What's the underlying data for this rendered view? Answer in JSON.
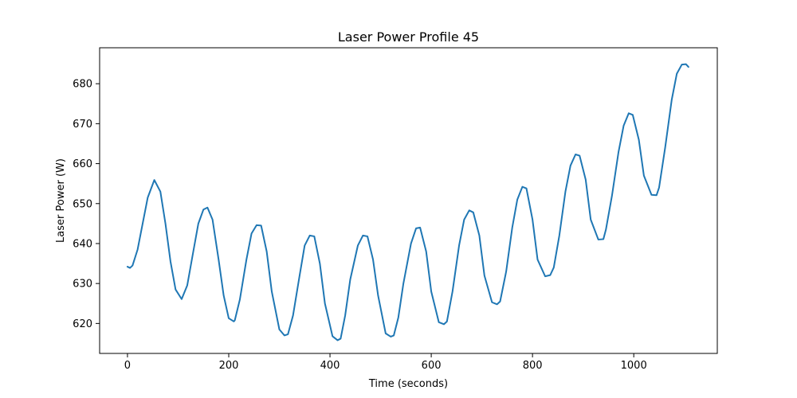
{
  "chart_data": {
    "type": "line",
    "title": "Laser Power Profile 45",
    "xlabel": "Time (seconds)",
    "ylabel": "Laser Power (W)",
    "xlim": [
      -55,
      1165
    ],
    "ylim": [
      612.5,
      689
    ],
    "xticks": [
      0,
      200,
      400,
      600,
      800,
      1000
    ],
    "yticks": [
      620,
      630,
      640,
      650,
      660,
      670,
      680
    ],
    "grid": false,
    "legend": "none",
    "series": [
      {
        "color": "#1f77b4",
        "x": [
          0,
          5,
          10,
          20,
          30,
          40,
          53,
          65,
          75,
          85,
          95,
          107,
          118,
          130,
          140,
          150,
          158,
          168,
          180,
          190,
          200,
          210,
          212,
          222,
          235,
          245,
          255,
          264,
          275,
          285,
          300,
          310,
          317,
          327,
          340,
          350,
          360,
          369,
          380,
          390,
          405,
          415,
          421,
          430,
          440,
          455,
          465,
          474,
          485,
          495,
          510,
          520,
          526,
          535,
          545,
          560,
          570,
          578,
          590,
          600,
          615,
          625,
          631,
          642,
          655,
          665,
          675,
          683,
          695,
          705,
          720,
          730,
          736,
          748,
          760,
          770,
          780,
          788,
          800,
          810,
          825,
          835,
          842,
          853,
          865,
          875,
          885,
          893,
          905,
          915,
          930,
          940,
          945,
          957,
          970,
          980,
          990,
          998,
          1010,
          1020,
          1035,
          1045,
          1050,
          1062,
          1075,
          1085,
          1095,
          1103,
          1108
        ],
        "y": [
          634.2,
          633.9,
          634.5,
          638.5,
          645,
          651.5,
          655.9,
          653,
          645,
          635.5,
          628.5,
          626.1,
          629.5,
          638,
          645,
          648.5,
          649,
          646,
          636,
          627,
          621.3,
          620.5,
          620.8,
          626,
          636,
          642.5,
          644.6,
          644.5,
          638,
          628,
          618.5,
          617,
          617.3,
          622,
          632,
          639.5,
          642,
          641.8,
          635,
          625,
          616.8,
          615.8,
          616.2,
          622,
          631,
          639.5,
          642,
          641.8,
          636,
          627,
          617.5,
          616.7,
          617,
          621.5,
          630,
          640,
          643.8,
          644,
          638,
          628,
          620.3,
          619.8,
          620.5,
          628,
          639.5,
          646,
          648.3,
          647.8,
          642,
          632,
          625.3,
          624.8,
          625.5,
          633,
          644,
          651,
          654.2,
          653.8,
          646,
          636,
          631.8,
          632.1,
          634,
          642,
          653,
          659.5,
          662.3,
          662,
          656,
          646,
          641,
          641.1,
          643.5,
          652,
          663,
          669.5,
          672.6,
          672.2,
          666,
          657,
          652.2,
          652.1,
          654,
          664,
          676,
          682.5,
          684.8,
          684.9,
          684.2
        ]
      }
    ]
  }
}
